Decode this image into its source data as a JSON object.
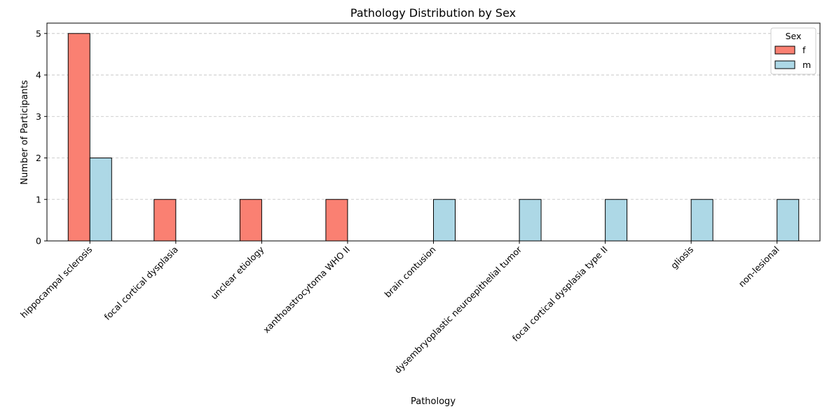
{
  "chart_data": {
    "type": "bar",
    "title": "Pathology Distribution by Sex",
    "xlabel": "Pathology",
    "ylabel": "Number of Participants",
    "categories": [
      "hippocampal sclerosis",
      "focal cortical dysplasia",
      "unclear etiology",
      "xanthoastrocytoma WHO II",
      "brain contusion",
      "dysembryoplastic neuroepithelial tumor",
      "focal cortical dysplasia type II",
      "gliosis",
      "non-lesional"
    ],
    "series": [
      {
        "name": "f",
        "values": [
          5,
          1,
          1,
          1,
          0,
          0,
          0,
          0,
          0
        ],
        "color": "#fa8072"
      },
      {
        "name": "m",
        "values": [
          2,
          0,
          0,
          0,
          1,
          1,
          1,
          1,
          1
        ],
        "color": "#add8e6"
      }
    ],
    "ylim": [
      0,
      5.25
    ],
    "yticks": [
      0,
      1,
      2,
      3,
      4,
      5
    ],
    "grid": {
      "y": true,
      "style": "dashed"
    },
    "legend": {
      "title": "Sex",
      "placement": "top-right"
    }
  }
}
